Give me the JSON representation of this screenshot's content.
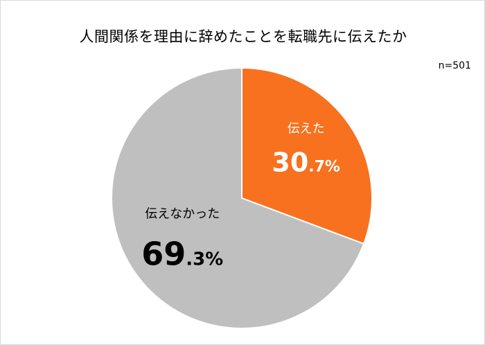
{
  "chart_data": {
    "type": "pie",
    "title": "人間関係を理由に辞めたことを転職先に伝えたか",
    "sample_size_label": "n=501",
    "slices": [
      {
        "label": "伝えた",
        "value": 30.7,
        "int_part": "30",
        "dec_part": ".7%",
        "color": "#F7711F",
        "label_color": "#ffffff"
      },
      {
        "label": "伝えなかった",
        "value": 69.3,
        "int_part": "69",
        "dec_part": ".3%",
        "color": "#BFBFBF",
        "label_color": "#000000"
      }
    ],
    "start_angle_deg": 0,
    "direction": "clockwise"
  }
}
